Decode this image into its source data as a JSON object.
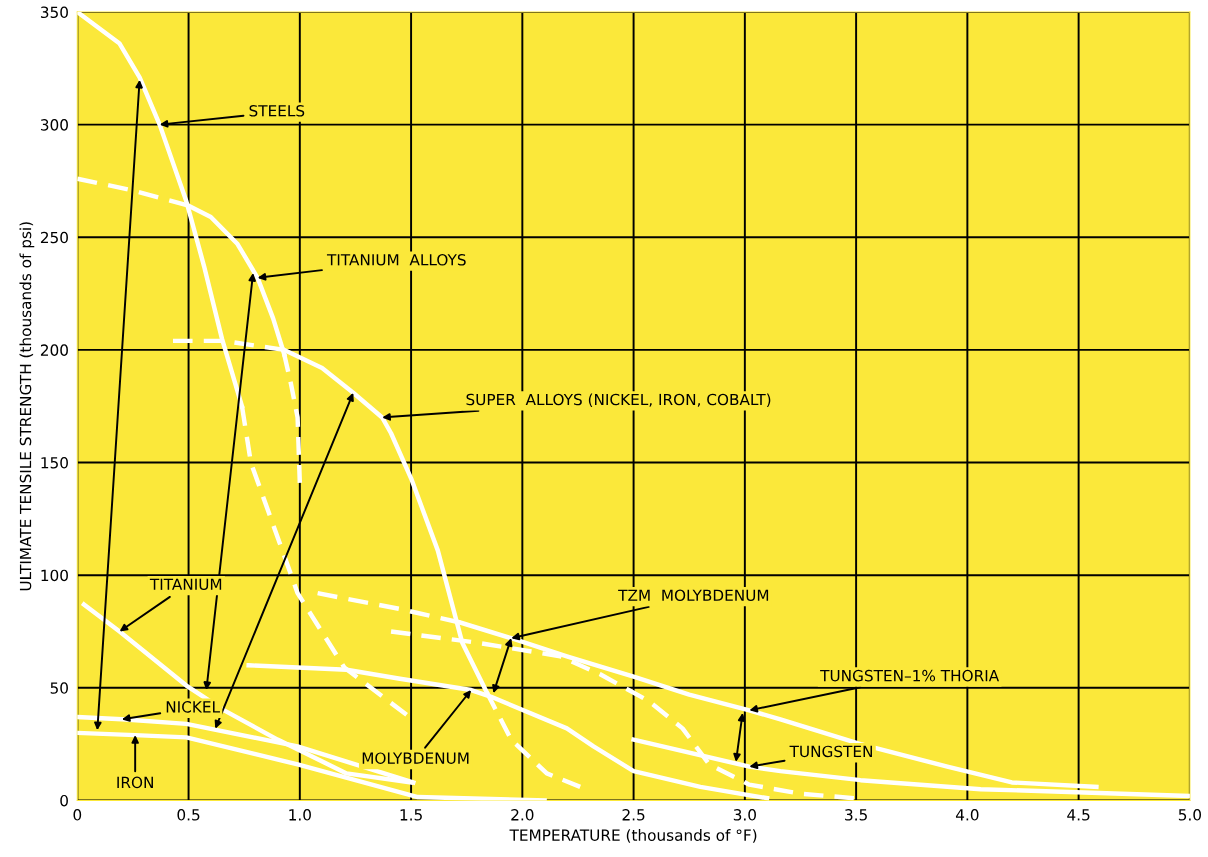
{
  "chart_data": {
    "type": "line",
    "xlabel": "TEMPERATURE (thousands of °F)",
    "ylabel": "ULTIMATE TENSILE STRENGTH (thousands of psi)",
    "xlim": [
      0,
      5.0
    ],
    "ylim": [
      0,
      350
    ],
    "xticks": [
      0,
      {
        "value": 0.5,
        "label": "0.5"
      },
      {
        "value": 1,
        "label": "1.0"
      },
      {
        "value": 1.5,
        "label": "1.5"
      },
      {
        "value": 2,
        "label": "2.0"
      },
      {
        "value": 2.5,
        "label": "2.5"
      },
      {
        "value": 3,
        "label": "3.0"
      },
      {
        "value": 3.5,
        "label": "3.5"
      },
      {
        "value": 4,
        "label": "4.0"
      },
      {
        "value": 4.5,
        "label": "4.5"
      },
      {
        "value": 5,
        "label": "5.0"
      }
    ],
    "yticks": [
      0,
      50,
      100,
      150,
      200,
      250,
      300,
      350
    ],
    "grid": true,
    "marker": "none",
    "series": [
      {
        "color": "#ffffff",
        "line_style": "solid",
        "x": [
          0,
          0.19,
          0.28,
          0.37,
          0.49,
          0.57,
          0.65,
          0.74
        ],
        "values": [
          350,
          336,
          321,
          300,
          266,
          237,
          205,
          175
        ]
      },
      {
        "color": "#ffffff",
        "line_style": "dashed",
        "x": [
          0.74,
          0.78,
          0.99,
          1.2,
          1.48
        ],
        "values": [
          175,
          150,
          92,
          59,
          38
        ]
      },
      {
        "color": "#ffffff",
        "line_style": "dashed",
        "x": [
          0,
          0.24,
          0.5
        ],
        "values": [
          276,
          271,
          264
        ]
      },
      {
        "color": "#ffffff",
        "line_style": "solid",
        "x": [
          0.5,
          0.6,
          0.72,
          0.81,
          0.88,
          0.93
        ],
        "values": [
          264,
          259,
          247,
          232,
          214,
          198
        ]
      },
      {
        "color": "#ffffff",
        "line_style": "dashed",
        "x": [
          0.93,
          0.96,
          0.99,
          1.0
        ],
        "values": [
          198,
          185,
          170,
          141
        ]
      },
      {
        "color": "#ffffff",
        "line_style": "dashed",
        "x": [
          0.43,
          0.66,
          0.93
        ],
        "values": [
          204,
          204,
          200
        ]
      },
      {
        "color": "#ffffff",
        "line_style": "solid",
        "x": [
          0.93,
          1.1,
          1.24,
          1.37,
          1.41,
          1.5,
          1.62,
          1.73,
          1.84
        ],
        "values": [
          200,
          192,
          181,
          170,
          163,
          143,
          111,
          70,
          48
        ]
      },
      {
        "color": "#ffffff",
        "line_style": "dashed",
        "x": [
          1.84,
          1.95,
          2.11,
          2.26
        ],
        "values": [
          48,
          27,
          12,
          6
        ]
      },
      {
        "color": "#ffffff",
        "line_style": "dashed",
        "x": [
          1.08,
          1.45,
          1.72
        ],
        "values": [
          92,
          85,
          79
        ]
      },
      {
        "color": "#ffffff",
        "line_style": "solid",
        "x": [
          1.72,
          1.95,
          2.2,
          2.5,
          2.75,
          3.02,
          3.16,
          3.52,
          3.91,
          4.2,
          4.58
        ],
        "values": [
          79,
          72,
          64,
          55,
          47,
          40,
          36,
          25,
          15,
          8,
          6
        ]
      },
      {
        "color": "#ffffff",
        "line_style": "dashed",
        "x": [
          1.41,
          1.8,
          2.17,
          2.35,
          2.57,
          2.72,
          2.84,
          3.02,
          3.25,
          3.49
        ],
        "values": [
          75,
          70,
          64,
          56,
          44,
          32,
          16,
          7,
          3,
          1
        ]
      },
      {
        "color": "#ffffff",
        "line_style": "solid",
        "x": [
          0.77,
          1.21,
          1.45,
          1.77,
          1.86,
          2.2,
          2.32,
          2.5,
          2.8,
          3.1
        ],
        "values": [
          60,
          58,
          54,
          49,
          46,
          32,
          24,
          13,
          6,
          1
        ]
      },
      {
        "color": "#ffffff",
        "line_style": "solid",
        "x": [
          2.5,
          3.02,
          3.16,
          3.52,
          4.06,
          5.0
        ],
        "values": [
          27,
          15,
          13,
          9,
          5,
          2
        ]
      },
      {
        "color": "#ffffff",
        "line_style": "solid",
        "x": [
          0.03,
          0.19,
          0.49,
          0.66,
          0.9,
          1.21,
          1.5
        ],
        "values": [
          87,
          75,
          51,
          40,
          27,
          12,
          8
        ]
      },
      {
        "color": "#ffffff",
        "line_style": "solid",
        "x": [
          0,
          0.2,
          0.49,
          0.99,
          1.51
        ],
        "values": [
          37,
          36,
          34,
          24,
          8
        ]
      },
      {
        "color": "#ffffff",
        "line_style": "solid",
        "x": [
          0,
          0.26,
          0.49,
          0.99,
          1.53,
          2.1
        ],
        "values": [
          30,
          29,
          28,
          16,
          1.5,
          0
        ]
      }
    ],
    "annotations": [
      {
        "text": "STEELS",
        "x": 0.37,
        "y": 300
      },
      {
        "text": "TITANIUM  ALLOYS",
        "x": 0.81,
        "y": 232
      },
      {
        "text": "SUPER  ALLOYS (NICKEL, IRON, COBALT)",
        "x": 1.37,
        "y": 170
      },
      {
        "text": "TZM  MOLYBDENUM",
        "x": 1.95,
        "y": 72
      },
      {
        "text": "TUNGSTEN–1% THORIA",
        "x": 3.02,
        "y": 40
      },
      {
        "text": "TUNGSTEN",
        "x": 3.02,
        "y": 15
      },
      {
        "text": "MOLYBDENUM",
        "x": 1.77,
        "y": 49
      },
      {
        "text": "TITANIUM",
        "x": 0.19,
        "y": 75
      },
      {
        "text": "NICKEL",
        "x": 0.2,
        "y": 36
      },
      {
        "text": "IRON",
        "x": 0.26,
        "y": 29
      }
    ]
  }
}
